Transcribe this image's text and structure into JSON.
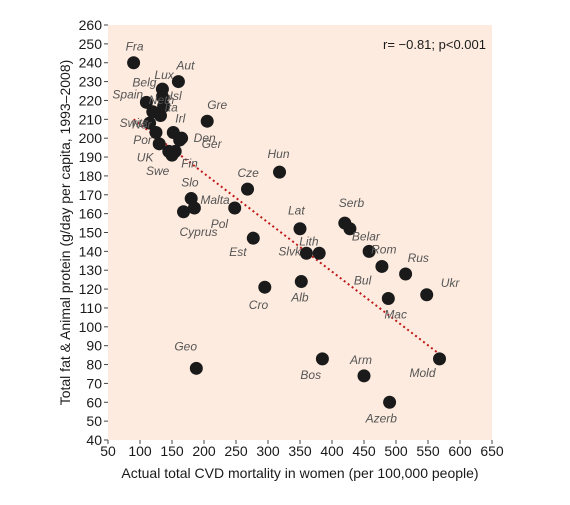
{
  "chart_data": {
    "type": "scatter",
    "xlabel": "Actual total CVD  mortality in women (per 100,000 people)",
    "ylabel": "Total fat & Animal protein (g/day per capita, 1993–2008)",
    "xlim": [
      50,
      650
    ],
    "ylim": [
      40,
      260
    ],
    "xticks": [
      50,
      100,
      150,
      200,
      250,
      300,
      350,
      400,
      450,
      500,
      550,
      600,
      650
    ],
    "yticks": [
      40,
      50,
      60,
      70,
      80,
      90,
      100,
      110,
      120,
      130,
      140,
      150,
      160,
      170,
      180,
      190,
      200,
      210,
      220,
      230,
      240,
      250,
      260
    ],
    "annotation": "r= −0.81; p<0.001",
    "grid": false,
    "background": "#fdebdf",
    "point_color": "#1a1a1a",
    "trendline": {
      "style": "dotted",
      "color": "#c01818",
      "from": [
        90,
        210
      ],
      "to": [
        570,
        85
      ]
    },
    "points": [
      {
        "label": "Fra",
        "x": 90,
        "y": 240
      },
      {
        "label": "Aut",
        "x": 160,
        "y": 230
      },
      {
        "label": "Lux",
        "x": 135,
        "y": 226
      },
      {
        "label": "Belg",
        "x": 135,
        "y": 222
      },
      {
        "label": "Isl",
        "x": 137,
        "y": 217
      },
      {
        "label": "Spain",
        "x": 110,
        "y": 219
      },
      {
        "label": "Neth",
        "x": 120,
        "y": 214
      },
      {
        "label": "Switz",
        "x": 115,
        "y": 208
      },
      {
        "label": "Ita",
        "x": 132,
        "y": 212
      },
      {
        "label": "Irl",
        "x": 152,
        "y": 203
      },
      {
        "label": "Gre",
        "x": 205,
        "y": 209
      },
      {
        "label": "Den",
        "x": 162,
        "y": 199
      },
      {
        "label": "Nor",
        "x": 125,
        "y": 203
      },
      {
        "label": "Por",
        "x": 130,
        "y": 197
      },
      {
        "label": "UK",
        "x": 145,
        "y": 193
      },
      {
        "label": "Ger",
        "x": 165,
        "y": 200
      },
      {
        "label": "Fin",
        "x": 155,
        "y": 193
      },
      {
        "label": "Swe",
        "x": 150,
        "y": 191
      },
      {
        "label": "Hun",
        "x": 318,
        "y": 182
      },
      {
        "label": "Cze",
        "x": 268,
        "y": 173
      },
      {
        "label": "Slo",
        "x": 180,
        "y": 168
      },
      {
        "label": "Malta",
        "x": 185,
        "y": 163
      },
      {
        "label": "Cyprus",
        "x": 168,
        "y": 161
      },
      {
        "label": "Pol",
        "x": 248,
        "y": 163
      },
      {
        "label": "Est",
        "x": 277,
        "y": 147
      },
      {
        "label": "Lat",
        "x": 350,
        "y": 152
      },
      {
        "label": "Serb",
        "x": 420,
        "y": 155
      },
      {
        "label": "Lith",
        "x": 380,
        "y": 139
      },
      {
        "label": "Slvk",
        "x": 360,
        "y": 139
      },
      {
        "label": "Belar",
        "x": 428,
        "y": 152
      },
      {
        "label": "Rom",
        "x": 458,
        "y": 140
      },
      {
        "label": "Bul",
        "x": 478,
        "y": 132
      },
      {
        "label": "Rus",
        "x": 515,
        "y": 128
      },
      {
        "label": "Ukr",
        "x": 548,
        "y": 117
      },
      {
        "label": "Cro",
        "x": 295,
        "y": 121
      },
      {
        "label": "Alb",
        "x": 352,
        "y": 124
      },
      {
        "label": "Mac",
        "x": 488,
        "y": 115
      },
      {
        "label": "Geo",
        "x": 188,
        "y": 78
      },
      {
        "label": "Bos",
        "x": 385,
        "y": 83
      },
      {
        "label": "Arm",
        "x": 450,
        "y": 74
      },
      {
        "label": "Mold",
        "x": 568,
        "y": 83
      },
      {
        "label": "Azerb",
        "x": 490,
        "y": 60
      }
    ]
  }
}
